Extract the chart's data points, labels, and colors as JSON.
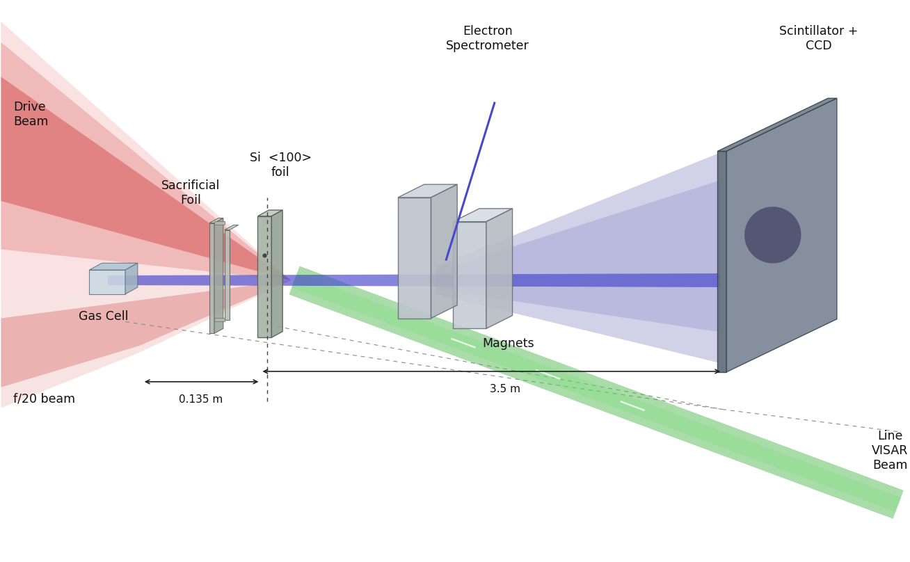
{
  "title": "",
  "labels": {
    "drive_beam": "Drive\nBeam",
    "gas_cell": "Gas Cell",
    "f20_beam": "f/20 beam",
    "sacrificial_foil": "Sacrificial\nFoil",
    "si_foil": "Si  <100>\nfoil",
    "magnets": "Magnets",
    "electron_spec": "Electron\nSpectrometer",
    "scintillator": "Scintillator +\nCCD",
    "line_visar": "Line\nVISAR\nBeam",
    "dist1": "0.135 m",
    "dist2": "3.5 m"
  },
  "colors": {
    "background_color": "#ffffff",
    "red_beam": "#e03030",
    "blue_beam": "#4040c0",
    "green_beam": "#50c050",
    "text_color": "#101010"
  }
}
